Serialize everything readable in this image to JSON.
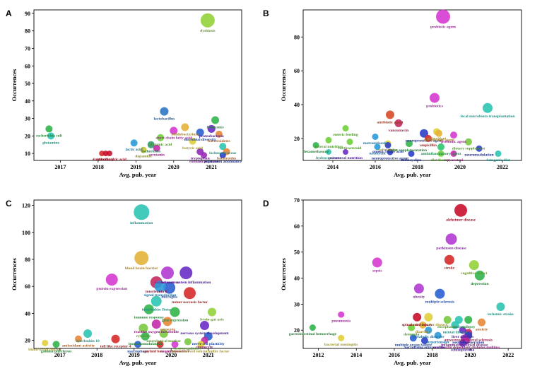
{
  "chart_data": [
    {
      "panel": "A",
      "type": "scatter",
      "xlabel": "Avg. pub. year",
      "ylabel": "Occurrences",
      "xlim": [
        2016.3,
        2021.8
      ],
      "ylim": [
        6,
        92
      ],
      "xticks": [
        2017,
        2018,
        2019,
        2020,
        2021
      ],
      "yticks": [
        10,
        20,
        30,
        40,
        50,
        60,
        70,
        80,
        90
      ],
      "points": [
        {
          "label": "dysbiosis",
          "x": 2020.9,
          "y": 86,
          "r": 10,
          "color": "#93d13b"
        },
        {
          "label": "lactobacillus",
          "x": 2019.75,
          "y": 34,
          "r": 6,
          "color": "#2f78c4"
        },
        {
          "label": "firmicutes",
          "x": 2021.1,
          "y": 29,
          "r": 5.5,
          "color": "#33b54a"
        },
        {
          "label": "bifidobacterium",
          "x": 2020.3,
          "y": 25,
          "r": 5.5,
          "color": "#e3b33a"
        },
        {
          "label": "proteobacteria",
          "x": 2021.0,
          "y": 24,
          "r": 5.5,
          "color": "#6a2cc7"
        },
        {
          "label": "escherichia coli",
          "x": 2016.7,
          "y": 24,
          "r": 5,
          "color": "#33b54a"
        },
        {
          "label": "short chain fatty acid",
          "x": 2020.0,
          "y": 23,
          "r": 5.5,
          "color": "#d63bd1"
        },
        {
          "label": "microbial diversity",
          "x": 2020.7,
          "y": 22,
          "r": 5.5,
          "color": "#2b5fd0"
        },
        {
          "label": "bacteroidetes",
          "x": 2021.2,
          "y": 21,
          "r": 5,
          "color": "#e8873a"
        },
        {
          "label": "glutamine",
          "x": 2016.75,
          "y": 20,
          "r": 5,
          "color": "#2ec4b2"
        },
        {
          "label": "glutamic acid",
          "x": 2019.65,
          "y": 19,
          "r": 5,
          "color": "#6fd03a"
        },
        {
          "label": "butyric acid",
          "x": 2020.5,
          "y": 17,
          "r": 5,
          "color": "#e0cf3a"
        },
        {
          "label": "lactic acid",
          "x": 2018.95,
          "y": 16,
          "r": 5,
          "color": "#2a9bd8"
        },
        {
          "label": "escherichia",
          "x": 2019.4,
          "y": 15,
          "r": 5,
          "color": "#2f9e6f"
        },
        {
          "label": "lachnospiraceae",
          "x": 2021.3,
          "y": 14,
          "r": 5,
          "color": "#2ec4b2"
        },
        {
          "label": "serotonin",
          "x": 2019.55,
          "y": 13,
          "r": 5,
          "color": "#c42aa8"
        },
        {
          "label": "dopamine",
          "x": 2019.2,
          "y": 12,
          "r": 4.5,
          "color": "#c2c23a"
        },
        {
          "label": "tryptophan",
          "x": 2020.7,
          "y": 11,
          "r": 5,
          "color": "#8e2ab8"
        },
        {
          "label": "bacteroides",
          "x": 2021.4,
          "y": 11,
          "r": 5,
          "color": "#e8873a"
        },
        {
          "label": "vitamin",
          "x": 2018.1,
          "y": 10,
          "r": 4,
          "color": "#d62b2b"
        },
        {
          "label": "vitamin d",
          "x": 2018.2,
          "y": 10,
          "r": 4,
          "color": "#c8102e"
        },
        {
          "label": "4 aminobutyric acid",
          "x": 2018.3,
          "y": 10,
          "r": 4,
          "color": "#c8102e"
        },
        {
          "label": "ruminococcaceae",
          "x": 2020.8,
          "y": 9,
          "r": 4.5,
          "color": "#9b2ab8"
        },
        {
          "label": "population abundance",
          "x": 2021.3,
          "y": 9,
          "r": 4.5,
          "color": "#2b3fc7"
        }
      ]
    },
    {
      "panel": "B",
      "type": "scatter",
      "xlabel": "Avg. pub. year",
      "ylabel": "Occurrences",
      "xlim": [
        2012.6,
        2022.9
      ],
      "ylim": [
        7,
        96
      ],
      "xticks": [
        2014,
        2016,
        2018,
        2020,
        2022
      ],
      "yticks": [
        20,
        40,
        60,
        80
      ],
      "points": [
        {
          "label": "probiotic agent",
          "x": 2019.2,
          "y": 92,
          "r": 10,
          "color": "#d63bd1"
        },
        {
          "label": "probiotics",
          "x": 2018.8,
          "y": 44,
          "r": 7,
          "color": "#d63bd1"
        },
        {
          "label": "fecal microbiota transplantation",
          "x": 2021.3,
          "y": 38,
          "r": 7,
          "color": "#2ec4b2"
        },
        {
          "label": "antibiotic agent",
          "x": 2016.7,
          "y": 34,
          "r": 6,
          "color": "#d64b2b"
        },
        {
          "label": "vancomycin",
          "x": 2017.1,
          "y": 29,
          "r": 5.5,
          "color": "#c42a62"
        },
        {
          "label": "enteric feeding",
          "x": 2014.6,
          "y": 26,
          "r": 4.5,
          "color": "#6fd03a"
        },
        {
          "label": "antioxidant",
          "x": 2018.9,
          "y": 24,
          "r": 5,
          "color": "#e0cf3a"
        },
        {
          "label": "neuroprotective agent",
          "x": 2018.3,
          "y": 23,
          "r": 6,
          "color": "#2b3fc7"
        },
        {
          "label": "antiinfective agent",
          "x": 2019.0,
          "y": 23,
          "r": 5,
          "color": "#e3b33a"
        },
        {
          "label": "prebiotic agent",
          "x": 2019.7,
          "y": 22,
          "r": 5,
          "color": "#d63bd1"
        },
        {
          "label": "metronidazole",
          "x": 2016.0,
          "y": 21,
          "r": 4.5,
          "color": "#2a9bd8"
        },
        {
          "label": "ampicillin",
          "x": 2018.5,
          "y": 20,
          "r": 5,
          "color": "#d62b2b"
        },
        {
          "label": "enteral nutrition",
          "x": 2013.8,
          "y": 19,
          "r": 4.5,
          "color": "#6fd03a"
        },
        {
          "label": "corticosteroid",
          "x": 2014.8,
          "y": 18,
          "r": 4.5,
          "color": "#6fd03a"
        },
        {
          "label": "ceftriaxone",
          "x": 2016.6,
          "y": 17,
          "r": 4.5,
          "color": "#e0cf3a"
        },
        {
          "label": "diet supplementation",
          "x": 2017.6,
          "y": 17,
          "r": 5,
          "color": "#33b54a"
        },
        {
          "label": "dietary supplement",
          "x": 2020.4,
          "y": 18,
          "r": 5,
          "color": "#7ac943"
        },
        {
          "label": "omega 3 fatty acid",
          "x": 2016.6,
          "y": 16,
          "r": 4.5,
          "color": "#2b3fc7"
        },
        {
          "label": "dexamethasone",
          "x": 2013.2,
          "y": 16,
          "r": 4.5,
          "color": "#33b54a"
        },
        {
          "label": "neomycin",
          "x": 2016.1,
          "y": 15,
          "r": 4.5,
          "color": "#2a9bd8"
        },
        {
          "label": "antiinflammatory agent",
          "x": 2019.1,
          "y": 15,
          "r": 5,
          "color": "#2ec46f"
        },
        {
          "label": "neuromodulation",
          "x": 2020.9,
          "y": 14,
          "r": 4.5,
          "color": "#2b3fc7"
        },
        {
          "label": "hydrocortisone",
          "x": 2013.8,
          "y": 12,
          "r": 4,
          "color": "#2ec4b2"
        },
        {
          "label": "parenteral nutrition",
          "x": 2014.6,
          "y": 12,
          "r": 4,
          "color": "#6a2cc7"
        },
        {
          "label": "neuroprotective agent",
          "x": 2016.7,
          "y": 12,
          "r": 4.5,
          "color": "#2b3fc7"
        },
        {
          "label": "minocycline",
          "x": 2017.7,
          "y": 11,
          "r": 4.5,
          "color": "#2b3fc7"
        },
        {
          "label": "diet therapy",
          "x": 2019.1,
          "y": 11,
          "r": 4.5,
          "color": "#6fd03a"
        },
        {
          "label": "resveratrol",
          "x": 2019.7,
          "y": 11,
          "r": 4.5,
          "color": "#c42aa8"
        },
        {
          "label": "ketogenic diet",
          "x": 2021.8,
          "y": 11,
          "r": 4.5,
          "color": "#2ec4b2"
        }
      ]
    },
    {
      "panel": "C",
      "type": "scatter",
      "xlabel": "Avg. pub. year",
      "ylabel": "Occurrences",
      "xlim": [
        2016.3,
        2021.9
      ],
      "ylim": [
        14,
        124
      ],
      "xticks": [
        2017,
        2018,
        2019,
        2020,
        2021
      ],
      "yticks": [
        20,
        40,
        60,
        80,
        100,
        120
      ],
      "points": [
        {
          "label": "inflammation",
          "x": 2019.2,
          "y": 115,
          "r": 11,
          "color": "#2ec4b2"
        },
        {
          "label": "blood brain barrier",
          "x": 2019.2,
          "y": 81,
          "r": 10,
          "color": "#e3b33a"
        },
        {
          "label": "oxidative stress",
          "x": 2019.9,
          "y": 70,
          "r": 9,
          "color": "#b23bd1"
        },
        {
          "label": "nervous system inflammation",
          "x": 2020.4,
          "y": 70,
          "r": 9,
          "color": "#6a2cc7"
        },
        {
          "label": "protein expression",
          "x": 2018.4,
          "y": 65,
          "r": 8.5,
          "color": "#d63bd1"
        },
        {
          "label": "interleukin 6",
          "x": 2019.6,
          "y": 63,
          "r": 8.5,
          "color": "#c42a62"
        },
        {
          "label": "microglia",
          "x": 2019.95,
          "y": 59,
          "r": 8.5,
          "color": "#2b5fd0"
        },
        {
          "label": "tumor necrosis factor",
          "x": 2020.5,
          "y": 55,
          "r": 8.5,
          "color": "#d62b2b"
        },
        {
          "label": "signal transduction",
          "x": 2019.7,
          "y": 60,
          "r": 8,
          "color": "#2a9bd8"
        },
        {
          "label": "interleukin 1beta",
          "x": 2019.6,
          "y": 49,
          "r": 7.5,
          "color": "#2ec4b2"
        },
        {
          "label": "immune response",
          "x": 2019.4,
          "y": 43,
          "r": 7,
          "color": "#33b54a"
        },
        {
          "label": "gene expression",
          "x": 2020.1,
          "y": 41,
          "r": 7,
          "color": "#33b54a"
        },
        {
          "label": "brain-gut axis",
          "x": 2021.1,
          "y": 41,
          "r": 6,
          "color": "#93d13b"
        },
        {
          "label": "astrocyte",
          "x": 2019.9,
          "y": 34,
          "r": 6.5,
          "color": "#e8873a"
        },
        {
          "label": "reactive oxygen metabolite",
          "x": 2019.6,
          "y": 32,
          "r": 6.5,
          "color": "#c42aa8"
        },
        {
          "label": "nervous system development",
          "x": 2020.9,
          "y": 31,
          "r": 6.5,
          "color": "#6a2cc7"
        },
        {
          "label": "cytokine",
          "x": 2019.25,
          "y": 29,
          "r": 6.5,
          "color": "#7ac943"
        },
        {
          "label": "interleukin 10",
          "x": 2017.75,
          "y": 25,
          "r": 6,
          "color": "#2ec4b2"
        },
        {
          "label": "toll like receptor 4",
          "x": 2018.5,
          "y": 21,
          "r": 6,
          "color": "#d62b2b"
        },
        {
          "label": "immunomodulation",
          "x": 2019.3,
          "y": 23,
          "r": 6,
          "color": "#33b54a"
        },
        {
          "label": "neurological marker",
          "x": 2019.8,
          "y": 25,
          "r": 6,
          "color": "#7ac943"
        },
        {
          "label": "nerve cell plasticity",
          "x": 2021.0,
          "y": 23,
          "r": 6,
          "color": "#2b5fd0"
        },
        {
          "label": "monocyte",
          "x": 2020.9,
          "y": 20,
          "r": 5,
          "color": "#c42aa8"
        },
        {
          "label": "blood-brain barrier",
          "x": 2016.6,
          "y": 18,
          "r": 4.5,
          "color": "#e0cf3a"
        },
        {
          "label": "antioxidant activity",
          "x": 2017.5,
          "y": 21,
          "r": 5,
          "color": "#e8873a"
        },
        {
          "label": "gamma interferon",
          "x": 2016.9,
          "y": 17,
          "r": 5,
          "color": "#33b54a"
        },
        {
          "label": "macrophage",
          "x": 2019.1,
          "y": 17,
          "r": 5,
          "color": "#2b5fd0"
        },
        {
          "label": "amyloid beta protein",
          "x": 2019.7,
          "y": 17,
          "r": 5,
          "color": "#d62b2b"
        },
        {
          "label": "neurotransmitter",
          "x": 2020.1,
          "y": 17,
          "r": 5,
          "color": "#d63bd1"
        },
        {
          "label": "brain derived neurotrophic factor",
          "x": 2020.8,
          "y": 17,
          "r": 5,
          "color": "#e0cf3a"
        },
        {
          "label": "neuroregulatory",
          "x": 2020.45,
          "y": 19,
          "r": 5,
          "color": "#7ac943"
        }
      ]
    },
    {
      "panel": "D",
      "type": "scatter",
      "xlabel": "Avg. pub. year",
      "ylabel": "Occurrences",
      "xlim": [
        2011.2,
        2022.7
      ],
      "ylim": [
        13,
        70
      ],
      "xticks": [
        2012,
        2014,
        2016,
        2018,
        2020,
        2022
      ],
      "yticks": [
        20,
        30,
        40,
        50,
        60,
        70
      ],
      "points": [
        {
          "label": "alzheimer disease",
          "x": 2019.5,
          "y": 66,
          "r": 9,
          "color": "#c8102e"
        },
        {
          "label": "parkinson disease",
          "x": 2019.0,
          "y": 55,
          "r": 8,
          "color": "#b23bd1"
        },
        {
          "label": "stroke",
          "x": 2018.9,
          "y": 47,
          "r": 7,
          "color": "#d62b2b"
        },
        {
          "label": "sepsis",
          "x": 2015.1,
          "y": 46,
          "r": 7,
          "color": "#d63bd1"
        },
        {
          "label": "cognitive defect",
          "x": 2020.2,
          "y": 45,
          "r": 7,
          "color": "#93d13b"
        },
        {
          "label": "depression",
          "x": 2020.5,
          "y": 41,
          "r": 7,
          "color": "#33b54a"
        },
        {
          "label": "obesity",
          "x": 2017.3,
          "y": 36,
          "r": 7,
          "color": "#b23bd1"
        },
        {
          "label": "multiple sclerosis",
          "x": 2018.4,
          "y": 34,
          "r": 7,
          "color": "#2b5fd0"
        },
        {
          "label": "ischemic stroke",
          "x": 2021.6,
          "y": 29,
          "r": 6,
          "color": "#2ec4b2"
        },
        {
          "label": "pneumonia",
          "x": 2013.2,
          "y": 26,
          "r": 4.5,
          "color": "#d63bd1"
        },
        {
          "label": "cardiovascular disease",
          "x": 2017.8,
          "y": 25,
          "r": 6,
          "color": "#e0cf3a"
        },
        {
          "label": "spinal cord injury",
          "x": 2017.2,
          "y": 25,
          "r": 6,
          "color": "#c8102e"
        },
        {
          "label": "encephalitis",
          "x": 2018.8,
          "y": 24,
          "r": 5.5,
          "color": "#7ac943"
        },
        {
          "label": "autism",
          "x": 2019.4,
          "y": 24,
          "r": 5.5,
          "color": "#2ec4b2"
        },
        {
          "label": "epilepsy",
          "x": 2019.9,
          "y": 24,
          "r": 5.5,
          "color": "#33b54a"
        },
        {
          "label": "anxiety",
          "x": 2020.6,
          "y": 23,
          "r": 5.5,
          "color": "#e8873a"
        },
        {
          "label": "diarrhea",
          "x": 2017.5,
          "y": 22,
          "r": 5,
          "color": "#e3b33a"
        },
        {
          "label": "mental disease",
          "x": 2019.2,
          "y": 22,
          "r": 5.5,
          "color": "#2ec4b2"
        },
        {
          "label": "gastrointestinal hemorrhage",
          "x": 2011.7,
          "y": 21,
          "r": 4.5,
          "color": "#33b54a"
        },
        {
          "label": "dementia",
          "x": 2016.9,
          "y": 21,
          "r": 5,
          "color": "#6fd03a"
        },
        {
          "label": "metabolic disorder",
          "x": 2017.8,
          "y": 20,
          "r": 5,
          "color": "#2a9bd8"
        },
        {
          "label": "liver diseases",
          "x": 2019.6,
          "y": 20,
          "r": 5,
          "color": "#6a2cc7"
        },
        {
          "label": "amyotrophic lateral sclerosis",
          "x": 2019.9,
          "y": 19,
          "r": 5.5,
          "color": "#c42a62"
        },
        {
          "label": "neurodegeneration",
          "x": 2019.9,
          "y": 18,
          "r": 5.5,
          "color": "#2b3fc7"
        },
        {
          "label": "bacterial meningitis",
          "x": 2013.2,
          "y": 17,
          "r": 4.5,
          "color": "#e0cf3a"
        },
        {
          "label": "hypertension",
          "x": 2018.3,
          "y": 18,
          "r": 5,
          "color": "#2a9bd8"
        },
        {
          "label": "multiple organ failure",
          "x": 2017.0,
          "y": 17,
          "r": 5,
          "color": "#2b5fd0"
        },
        {
          "label": "necrotizing enterocolitis",
          "x": 2017.6,
          "y": 16,
          "r": 5,
          "color": "#2b3fc7"
        },
        {
          "label": "inflammatory bowel disease",
          "x": 2019.7,
          "y": 17,
          "r": 5,
          "color": "#8e2ab8"
        },
        {
          "label": "non insulin dependent diabetes mellitus",
          "x": 2019.8,
          "y": 16,
          "r": 5,
          "color": "#c42aa8"
        },
        {
          "label": "schizophrenia",
          "x": 2019.6,
          "y": 15,
          "r": 5,
          "color": "#6a2cc7"
        }
      ]
    }
  ]
}
